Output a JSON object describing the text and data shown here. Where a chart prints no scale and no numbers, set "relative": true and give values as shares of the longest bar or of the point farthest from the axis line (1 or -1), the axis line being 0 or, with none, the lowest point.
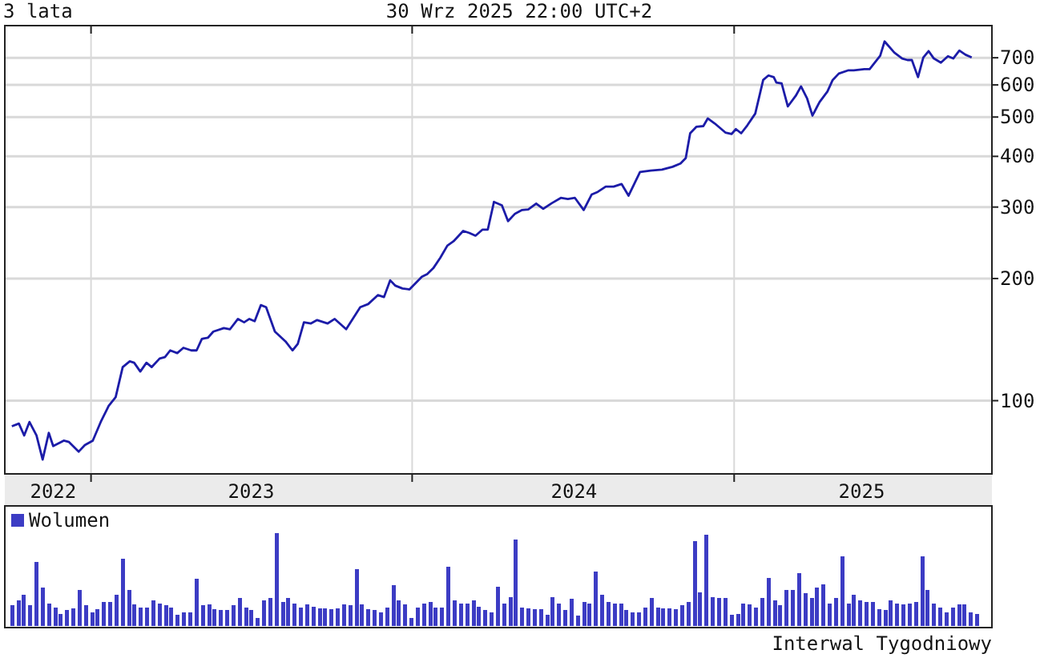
{
  "chart_data": [
    {
      "type": "line",
      "title": "3 lata",
      "subtitle": "30 Wrz 2025 22:00 UTC+2",
      "log": true,
      "grid": true,
      "xlim": [
        "2022-09-25",
        "2025-10-21"
      ],
      "xticks": [
        {
          "value": "2023-01-01",
          "label": null
        },
        {
          "value": "2024-01-01",
          "label": null
        },
        {
          "value": "2025-01-01",
          "label": null
        },
        {
          "value": "2022-11-19",
          "label": "2022"
        },
        {
          "value": "2023-07-02",
          "label": "2023"
        },
        {
          "value": "2024-07-03",
          "label": "2024"
        },
        {
          "value": "2025-05-26",
          "label": "2025"
        }
      ],
      "ylim": [
        66,
        840
      ],
      "yticks": [
        100,
        200,
        300,
        400,
        500,
        600,
        700
      ],
      "series": [
        {
          "color": "#1c1ca8",
          "x": [
            "2022-10-03",
            "2022-10-11",
            "2022-10-17",
            "2022-10-23",
            "2022-10-31",
            "2022-11-07",
            "2022-11-14",
            "2022-11-19",
            "2022-12-01",
            "2022-12-07",
            "2022-12-18",
            "2022-12-25",
            "2023-01-03",
            "2023-01-12",
            "2023-01-21",
            "2023-01-29",
            "2023-02-06",
            "2023-02-14",
            "2023-02-19",
            "2023-02-26",
            "2023-03-05",
            "2023-03-11",
            "2023-03-20",
            "2023-03-26",
            "2023-04-01",
            "2023-04-09",
            "2023-04-16",
            "2023-04-25",
            "2023-05-01",
            "2023-05-07",
            "2023-05-14",
            "2023-05-20",
            "2023-06-01",
            "2023-06-08",
            "2023-06-17",
            "2023-06-24",
            "2023-06-30",
            "2023-07-06",
            "2023-07-13",
            "2023-07-19",
            "2023-07-29",
            "2023-08-10",
            "2023-08-18",
            "2023-08-24",
            "2023-08-31",
            "2023-09-08",
            "2023-09-15",
            "2023-09-27",
            "2023-10-05",
            "2023-10-18",
            "2023-11-03",
            "2023-11-12",
            "2023-11-23",
            "2023-11-30",
            "2023-12-07",
            "2023-12-13",
            "2023-12-21",
            "2023-12-29",
            "2024-01-12",
            "2024-01-18",
            "2024-01-25",
            "2024-02-02",
            "2024-02-10",
            "2024-02-17",
            "2024-02-28",
            "2024-03-06",
            "2024-03-13",
            "2024-03-21",
            "2024-03-27",
            "2024-04-03",
            "2024-04-12",
            "2024-04-19",
            "2024-04-27",
            "2024-05-05",
            "2024-05-12",
            "2024-05-21",
            "2024-05-29",
            "2024-06-08",
            "2024-06-18",
            "2024-06-26",
            "2024-07-04",
            "2024-07-14",
            "2024-07-23",
            "2024-07-30",
            "2024-08-08",
            "2024-08-17",
            "2024-08-26",
            "2024-09-03",
            "2024-09-16",
            "2024-09-28",
            "2024-10-11",
            "2024-10-23",
            "2024-11-01",
            "2024-11-07",
            "2024-11-12",
            "2024-11-19",
            "2024-11-27",
            "2024-12-02",
            "2024-12-10",
            "2024-12-22",
            "2024-12-29",
            "2025-01-03",
            "2025-01-09",
            "2025-01-16",
            "2025-01-25",
            "2025-02-03",
            "2025-02-09",
            "2025-02-15",
            "2025-02-18",
            "2025-02-24",
            "2025-03-03",
            "2025-03-12",
            "2025-03-18",
            "2025-03-25",
            "2025-03-31",
            "2025-04-08",
            "2025-04-17",
            "2025-04-23",
            "2025-04-30",
            "2025-05-11",
            "2025-05-17",
            "2025-05-29",
            "2025-06-04",
            "2025-06-16",
            "2025-06-21",
            "2025-07-02",
            "2025-07-11",
            "2025-07-17",
            "2025-07-22",
            "2025-07-29",
            "2025-08-04",
            "2025-08-10",
            "2025-08-16",
            "2025-08-24",
            "2025-09-01",
            "2025-09-07",
            "2025-09-14",
            "2025-09-21",
            "2025-09-28"
          ],
          "values": [
            86.5,
            87.8,
            82.1,
            88.6,
            82.1,
            71.6,
            83.3,
            77.3,
            79.7,
            79.1,
            74.9,
            77.7,
            79.7,
            88.6,
            97,
            102,
            121,
            125,
            124,
            118,
            124,
            121,
            127,
            128,
            133,
            131,
            135,
            133,
            133,
            142,
            143,
            148,
            151,
            150,
            159,
            156,
            159,
            157,
            172,
            170,
            148,
            140,
            133,
            138,
            156,
            155,
            158,
            155,
            159,
            150,
            170,
            173,
            182,
            180,
            198,
            192,
            189,
            188,
            202,
            205,
            212,
            225,
            241,
            247,
            262,
            259,
            255,
            264,
            264,
            309,
            303,
            277,
            289,
            295,
            296,
            306,
            297,
            307,
            316,
            314,
            316,
            295,
            322,
            327,
            337,
            337,
            342,
            320,
            366,
            369,
            371,
            377,
            384,
            396,
            456,
            473,
            475,
            496,
            482,
            458,
            454,
            467,
            456,
            477,
            510,
            617,
            633,
            627,
            608,
            605,
            531,
            564,
            595,
            555,
            504,
            544,
            578,
            617,
            640,
            652,
            652,
            656,
            656,
            708,
            768,
            721,
            697,
            691,
            691,
            627,
            701,
            727,
            697,
            681,
            706,
            697,
            729,
            712,
            701
          ]
        }
      ]
    },
    {
      "type": "bar",
      "relative": true,
      "legend": "top left",
      "annotations": [
        "Interwal Tygodniowy"
      ],
      "categories": [
        null,
        null,
        null,
        null,
        null,
        null,
        null,
        null,
        null,
        null,
        null,
        null,
        null,
        null,
        null,
        null,
        null,
        null,
        null,
        null,
        null,
        null,
        null,
        null,
        null,
        null,
        null,
        null,
        null,
        null,
        null,
        null,
        null,
        null,
        null,
        null,
        null,
        null,
        null,
        null,
        null,
        null,
        null,
        null,
        null,
        null,
        null,
        null,
        null,
        null,
        null,
        null,
        null,
        null,
        null,
        null,
        null,
        null,
        null,
        null,
        null,
        null,
        null,
        null,
        null,
        null,
        null,
        null,
        null,
        null,
        null,
        null,
        null,
        null,
        null,
        null,
        null,
        null,
        null,
        null,
        null,
        null,
        null,
        null,
        null,
        null,
        null,
        null,
        null,
        null,
        null,
        null,
        null,
        null,
        null,
        null,
        null,
        null,
        null,
        null,
        null,
        null,
        null,
        null,
        null,
        null,
        null,
        null,
        null,
        null,
        null,
        null,
        null,
        null,
        null,
        null,
        null,
        null,
        null,
        null,
        null,
        null,
        null,
        null,
        null,
        null,
        null,
        null,
        null,
        null,
        null,
        null,
        null,
        null,
        null,
        null,
        null,
        null,
        null,
        null,
        null,
        null,
        null,
        null,
        null,
        null,
        null,
        null,
        null,
        null,
        null,
        null,
        null,
        null,
        null,
        null,
        null,
        null
      ],
      "series": [
        {
          "name": "Wolumen",
          "color": "#3c3cc4",
          "values": [
            0.22,
            0.28,
            0.34,
            0.22,
            0.69,
            0.41,
            0.24,
            0.2,
            0.13,
            0.17,
            0.19,
            0.39,
            0.22,
            0.15,
            0.18,
            0.26,
            0.26,
            0.34,
            0.72,
            0.39,
            0.23,
            0.2,
            0.2,
            0.28,
            0.24,
            0.22,
            0.2,
            0.12,
            0.15,
            0.15,
            0.51,
            0.22,
            0.23,
            0.18,
            0.17,
            0.17,
            0.22,
            0.3,
            0.2,
            0.17,
            0.09,
            0.28,
            0.3,
            1,
            0.26,
            0.3,
            0.24,
            0.2,
            0.23,
            0.21,
            0.19,
            0.19,
            0.18,
            0.19,
            0.23,
            0.22,
            0.61,
            0.23,
            0.18,
            0.17,
            0.15,
            0.2,
            0.44,
            0.28,
            0.23,
            0.09,
            0.2,
            0.24,
            0.26,
            0.2,
            0.2,
            0.64,
            0.28,
            0.24,
            0.24,
            0.28,
            0.21,
            0.17,
            0.15,
            0.42,
            0.24,
            0.31,
            0.93,
            0.2,
            0.19,
            0.18,
            0.18,
            0.12,
            0.31,
            0.24,
            0.17,
            0.29,
            0.11,
            0.26,
            0.24,
            0.59,
            0.34,
            0.26,
            0.24,
            0.24,
            0.17,
            0.15,
            0.15,
            0.2,
            0.3,
            0.2,
            0.19,
            0.19,
            0.18,
            0.22,
            0.26,
            0.91,
            0.36,
            0.98,
            0.31,
            0.3,
            0.3,
            0.12,
            0.13,
            0.24,
            0.23,
            0.2,
            0.3,
            0.52,
            0.28,
            0.22,
            0.39,
            0.39,
            0.57,
            0.35,
            0.3,
            0.41,
            0.45,
            0.24,
            0.3,
            0.75,
            0.24,
            0.34,
            0.28,
            0.26,
            0.26,
            0.18,
            0.17,
            0.28,
            0.24,
            0.23,
            0.24,
            0.26,
            0.75,
            0.39,
            0.24,
            0.2,
            0.15,
            0.2,
            0.23,
            0.23,
            0.15,
            0.13
          ]
        }
      ]
    }
  ]
}
